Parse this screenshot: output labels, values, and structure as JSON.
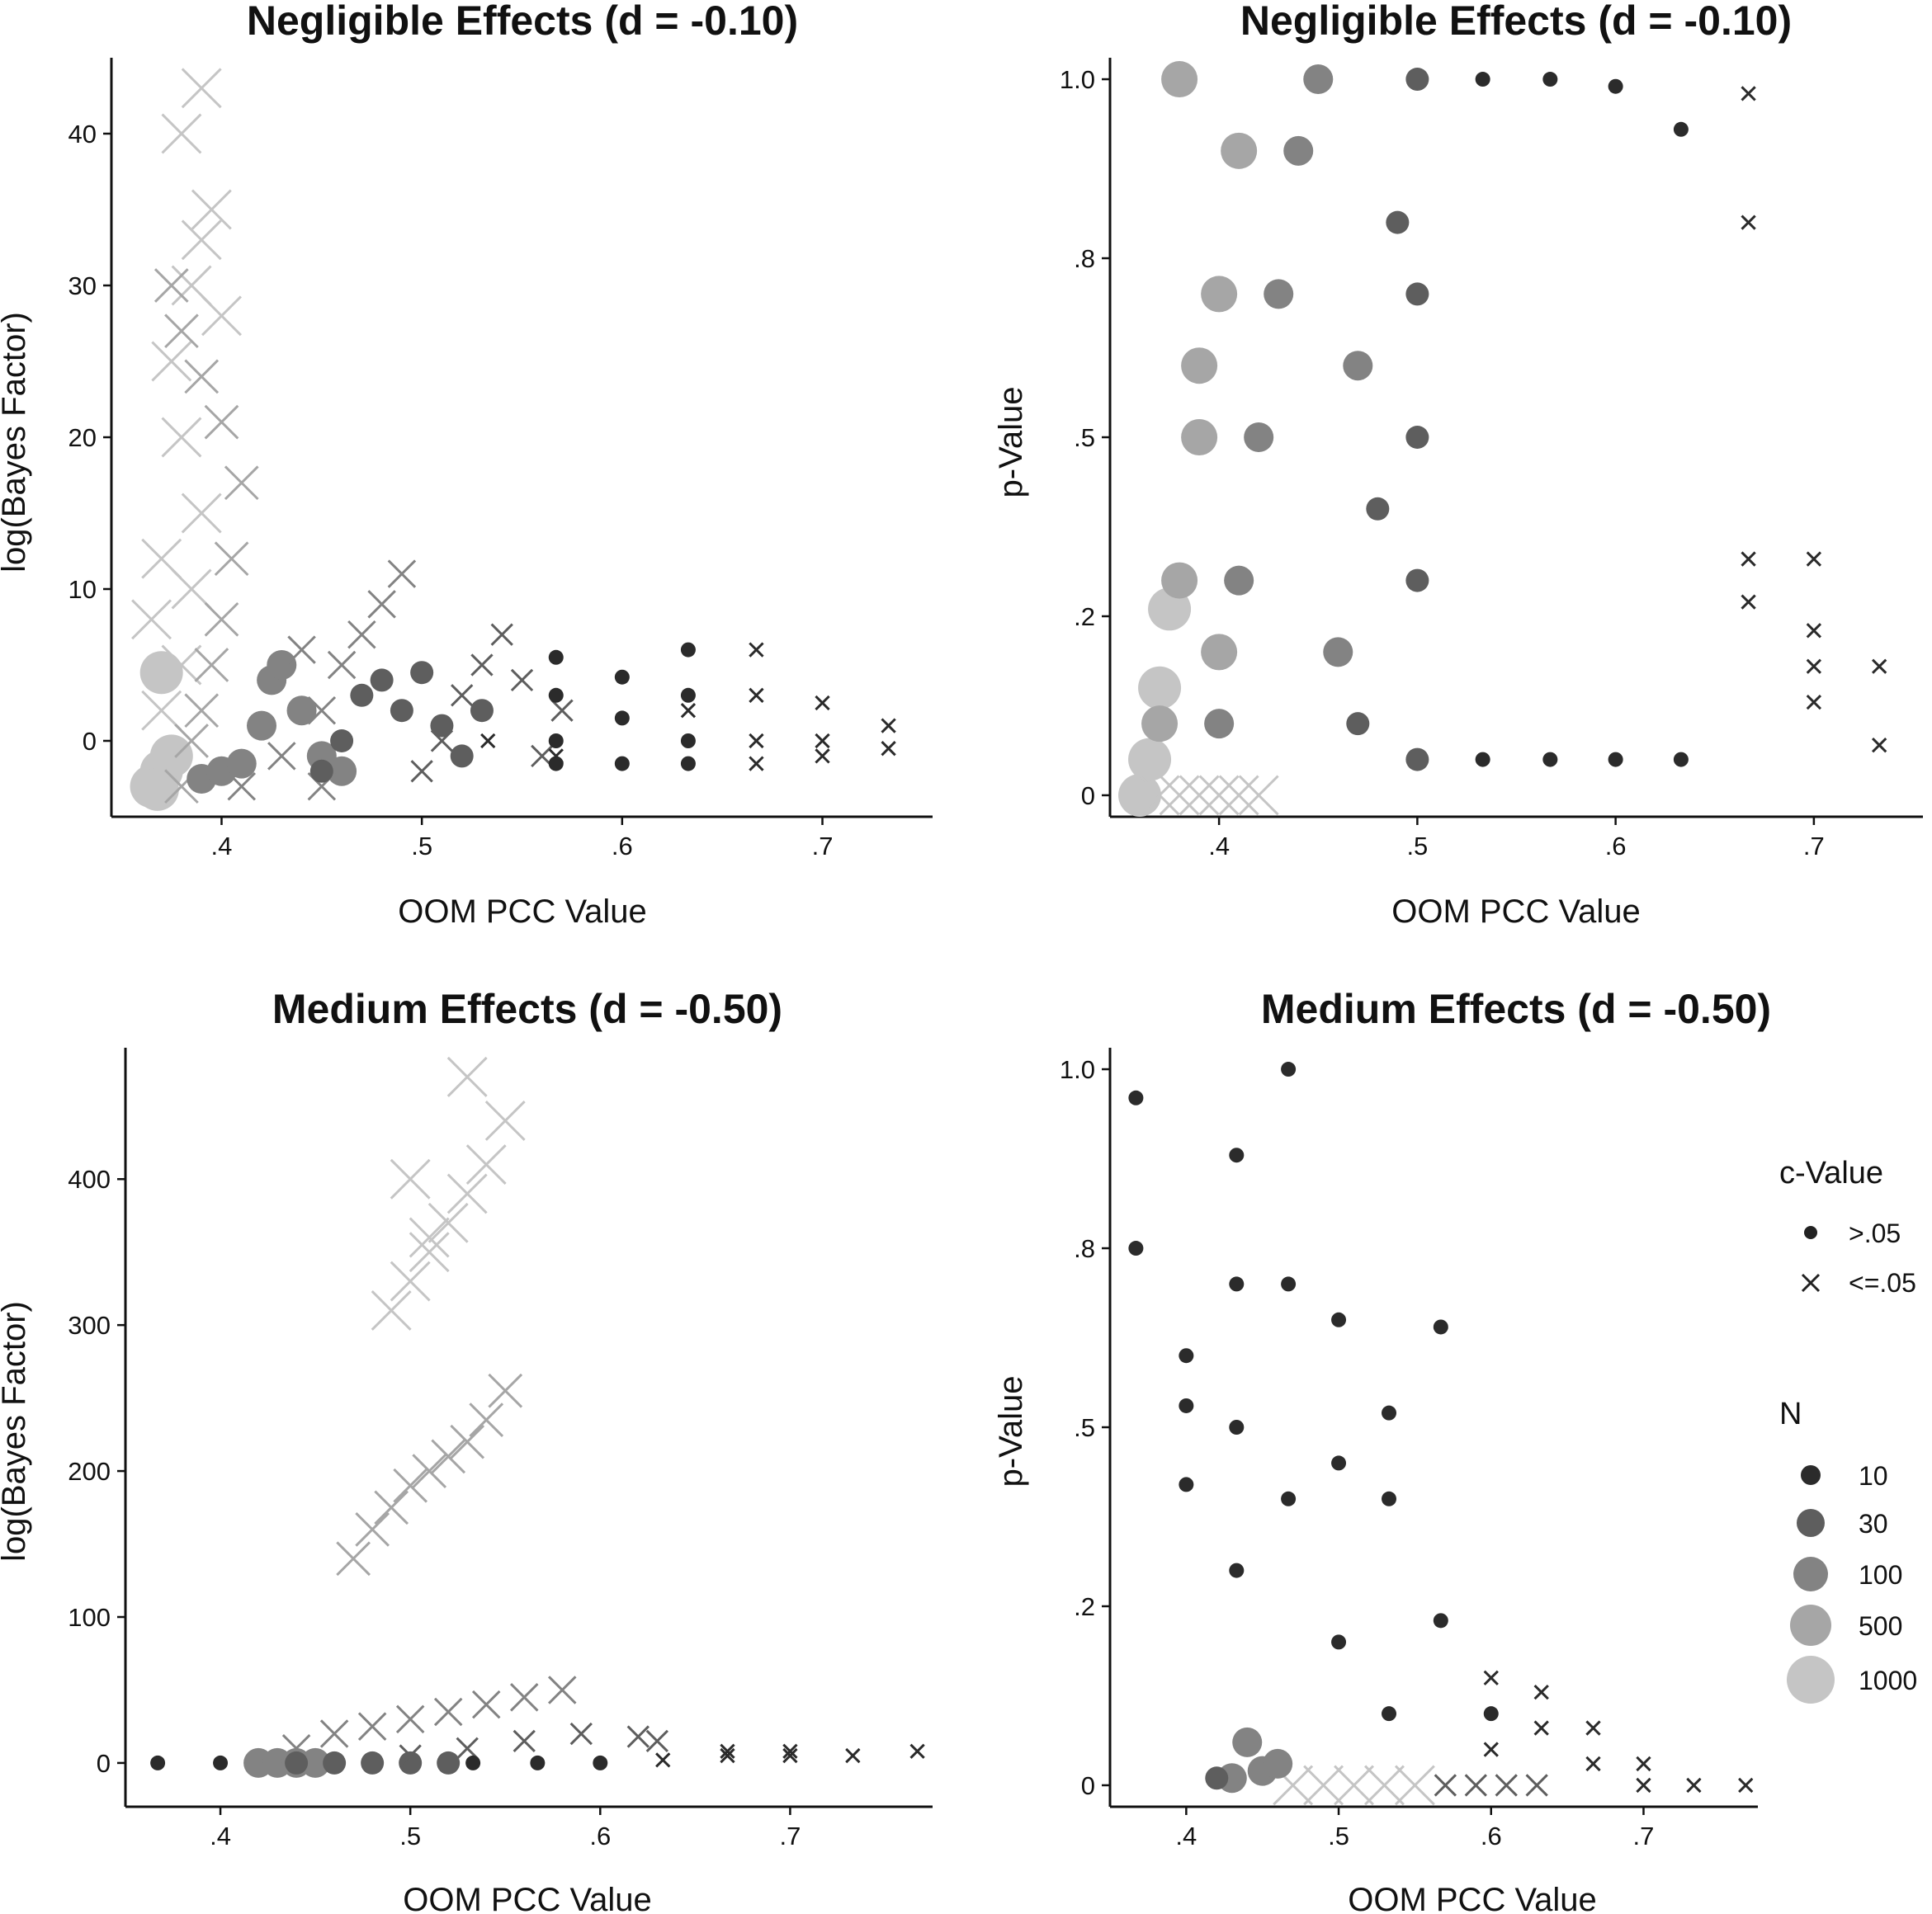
{
  "chart_data": [
    {
      "type": "scatter",
      "title": "Negligible Effects (d = -0.10)",
      "xlabel": "OOM PCC Value",
      "ylabel": "log(Bayes Factor)",
      "xlim": [
        0.345,
        0.755
      ],
      "ylim": [
        -5,
        45
      ],
      "x_ticks": [
        0.4,
        0.5,
        0.6,
        0.7
      ],
      "x_tick_labels": [
        ".4",
        ".5",
        ".6",
        ".7"
      ],
      "y_ticks": [
        0,
        10,
        20,
        30,
        40
      ],
      "y_tick_labels": [
        "0",
        "10",
        "20",
        "30",
        "40"
      ],
      "series": [
        {
          "N": 1000,
          "shape": "circle",
          "x": [
            0.365,
            0.37,
            0.375,
            0.37,
            0.368
          ],
          "y": [
            -3,
            -2,
            -1,
            4.5,
            -3.2
          ]
        },
        {
          "N": 1000,
          "shape": "cross",
          "x": [
            0.37,
            0.38,
            0.385,
            0.39,
            0.38,
            0.375,
            0.385,
            0.39,
            0.395,
            0.38,
            0.37,
            0.365,
            0.39,
            0.4
          ],
          "y": [
            2,
            5,
            10,
            15,
            20,
            25,
            30,
            33,
            35,
            40,
            12,
            8,
            43,
            28
          ]
        },
        {
          "N": 500,
          "shape": "cross",
          "x": [
            0.38,
            0.385,
            0.39,
            0.395,
            0.4,
            0.405,
            0.41,
            0.4,
            0.39,
            0.38,
            0.375
          ],
          "y": [
            -3,
            0,
            2,
            5,
            8,
            12,
            17,
            21,
            24,
            27,
            30
          ]
        },
        {
          "N": 100,
          "shape": "circle",
          "x": [
            0.39,
            0.4,
            0.41,
            0.42,
            0.425,
            0.43,
            0.44,
            0.45,
            0.46
          ],
          "y": [
            -2.5,
            -2,
            -1.5,
            1,
            4,
            5,
            2,
            -1,
            -2
          ]
        },
        {
          "N": 100,
          "shape": "cross",
          "x": [
            0.41,
            0.43,
            0.45,
            0.46,
            0.47,
            0.48,
            0.49,
            0.45,
            0.44
          ],
          "y": [
            -3,
            -1,
            2,
            5,
            7,
            9,
            11,
            -3,
            6
          ]
        },
        {
          "N": 30,
          "shape": "circle",
          "x": [
            0.45,
            0.46,
            0.47,
            0.48,
            0.49,
            0.5,
            0.51,
            0.52,
            0.53
          ],
          "y": [
            -2,
            0,
            3,
            4,
            2,
            4.5,
            1,
            -1,
            2
          ]
        },
        {
          "N": 30,
          "shape": "cross",
          "x": [
            0.5,
            0.51,
            0.52,
            0.53,
            0.54,
            0.55,
            0.56,
            0.57
          ],
          "y": [
            -2,
            0,
            3,
            5,
            7,
            4,
            -1,
            2
          ]
        },
        {
          "N": 10,
          "shape": "circle",
          "x": [
            0.567,
            0.567,
            0.567,
            0.567,
            0.6,
            0.6,
            0.6,
            0.633,
            0.633,
            0.633,
            0.633
          ],
          "y": [
            5.5,
            3,
            0,
            -1.5,
            4.2,
            1.5,
            -1.5,
            6,
            3,
            0,
            -1.5
          ]
        },
        {
          "N": 10,
          "shape": "cross",
          "x": [
            0.533,
            0.567,
            0.633,
            0.667,
            0.667,
            0.667,
            0.667,
            0.7,
            0.7,
            0.7,
            0.733,
            0.733
          ],
          "y": [
            0,
            -1,
            2,
            6,
            3,
            0,
            -1.5,
            2.5,
            0,
            -1,
            1,
            -0.5
          ]
        }
      ]
    },
    {
      "type": "scatter",
      "title": "Negligible Effects (d = -0.10)",
      "xlabel": "OOM PCC Value",
      "ylabel": "p-Value",
      "xlim": [
        0.345,
        0.755
      ],
      "ylim": [
        -0.03,
        1.03
      ],
      "x_ticks": [
        0.4,
        0.5,
        0.6,
        0.7
      ],
      "x_tick_labels": [
        ".4",
        ".5",
        ".6",
        ".7"
      ],
      "y_ticks": [
        0,
        0.25,
        0.5,
        0.75,
        1.0
      ],
      "y_tick_labels": [
        "0",
        ".2",
        ".5",
        ".8",
        "1.0"
      ],
      "series": [
        {
          "N": 1000,
          "shape": "circle",
          "x": [
            0.36,
            0.365,
            0.37,
            0.375
          ],
          "y": [
            0.0,
            0.05,
            0.15,
            0.26
          ]
        },
        {
          "N": 1000,
          "shape": "cross",
          "x": [
            0.37,
            0.38,
            0.39,
            0.4,
            0.41,
            0.42
          ],
          "y": [
            0.0,
            0.0,
            0.0,
            0.0,
            0.0,
            0.0
          ]
        },
        {
          "N": 500,
          "shape": "circle",
          "x": [
            0.37,
            0.38,
            0.39,
            0.4,
            0.41,
            0.38,
            0.39,
            0.4
          ],
          "y": [
            0.1,
            0.3,
            0.5,
            0.7,
            0.9,
            1.0,
            0.6,
            0.2
          ]
        },
        {
          "N": 100,
          "shape": "circle",
          "x": [
            0.4,
            0.41,
            0.42,
            0.43,
            0.44,
            0.45,
            0.46,
            0.47
          ],
          "y": [
            0.1,
            0.3,
            0.5,
            0.7,
            0.9,
            1.0,
            0.2,
            0.6
          ]
        },
        {
          "N": 30,
          "shape": "circle",
          "x": [
            0.47,
            0.48,
            0.49,
            0.5,
            0.5,
            0.5,
            0.5,
            0.5
          ],
          "y": [
            0.1,
            0.4,
            0.8,
            1.0,
            0.7,
            0.5,
            0.3,
            0.05
          ]
        },
        {
          "N": 10,
          "shape": "circle",
          "x": [
            0.533,
            0.533,
            0.567,
            0.567,
            0.6,
            0.6,
            0.633,
            0.633
          ],
          "y": [
            1.0,
            0.05,
            1.0,
            0.05,
            0.99,
            0.05,
            0.93,
            0.05
          ]
        },
        {
          "N": 10,
          "shape": "cross",
          "x": [
            0.667,
            0.667,
            0.667,
            0.667,
            0.7,
            0.7,
            0.7,
            0.7,
            0.733,
            0.733
          ],
          "y": [
            0.98,
            0.8,
            0.33,
            0.27,
            0.33,
            0.23,
            0.18,
            0.13,
            0.18,
            0.07
          ]
        }
      ]
    },
    {
      "type": "scatter",
      "title": "Medium Effects (d = -0.50)",
      "xlabel": "OOM PCC Value",
      "ylabel": "log(Bayes Factor)",
      "xlim": [
        0.35,
        0.775
      ],
      "ylim": [
        -30,
        490
      ],
      "x_ticks": [
        0.4,
        0.5,
        0.6,
        0.7
      ],
      "x_tick_labels": [
        ".4",
        ".5",
        ".6",
        ".7"
      ],
      "y_ticks": [
        0,
        100,
        200,
        300,
        400
      ],
      "y_tick_labels": [
        "0",
        "100",
        "200",
        "300",
        "400"
      ],
      "series": [
        {
          "N": 1000,
          "shape": "cross",
          "x": [
            0.49,
            0.5,
            0.51,
            0.52,
            0.53,
            0.54,
            0.55,
            0.5,
            0.51,
            0.53
          ],
          "y": [
            310,
            330,
            350,
            370,
            390,
            410,
            440,
            400,
            360,
            470
          ]
        },
        {
          "N": 500,
          "shape": "cross",
          "x": [
            0.47,
            0.48,
            0.49,
            0.5,
            0.51,
            0.52,
            0.53,
            0.54,
            0.55
          ],
          "y": [
            140,
            160,
            175,
            190,
            200,
            210,
            220,
            235,
            255
          ]
        },
        {
          "N": 100,
          "shape": "cross",
          "x": [
            0.44,
            0.46,
            0.48,
            0.5,
            0.52,
            0.54,
            0.56,
            0.58
          ],
          "y": [
            10,
            20,
            25,
            30,
            35,
            40,
            45,
            50
          ]
        },
        {
          "N": 100,
          "shape": "circle",
          "x": [
            0.42,
            0.43,
            0.44,
            0.45
          ],
          "y": [
            0,
            0,
            0,
            0
          ]
        },
        {
          "N": 30,
          "shape": "circle",
          "x": [
            0.44,
            0.46,
            0.48,
            0.5,
            0.52
          ],
          "y": [
            0,
            0,
            0,
            0,
            0
          ]
        },
        {
          "N": 30,
          "shape": "cross",
          "x": [
            0.5,
            0.53,
            0.56,
            0.59,
            0.62,
            0.63
          ],
          "y": [
            5,
            10,
            15,
            20,
            18,
            15
          ]
        },
        {
          "N": 10,
          "shape": "circle",
          "x": [
            0.367,
            0.4,
            0.533,
            0.567,
            0.6
          ],
          "y": [
            0,
            0,
            0,
            0,
            0
          ]
        },
        {
          "N": 10,
          "shape": "cross",
          "x": [
            0.633,
            0.667,
            0.667,
            0.7,
            0.7,
            0.733,
            0.767
          ],
          "y": [
            2,
            5,
            8,
            5,
            8,
            5,
            8
          ]
        }
      ]
    },
    {
      "type": "scatter",
      "title": "Medium Effects (d = -0.50)",
      "xlabel": "OOM PCC Value",
      "ylabel": "p-Value",
      "xlim": [
        0.35,
        0.775
      ],
      "ylim": [
        -0.03,
        1.03
      ],
      "x_ticks": [
        0.4,
        0.5,
        0.6,
        0.7
      ],
      "x_tick_labels": [
        ".4",
        ".5",
        ".6",
        ".7"
      ],
      "y_ticks": [
        0,
        0.25,
        0.5,
        0.75,
        1.0
      ],
      "y_tick_labels": [
        "0",
        ".2",
        ".5",
        ".8",
        "1.0"
      ],
      "series": [
        {
          "N": 1000,
          "shape": "cross",
          "x": [
            0.47,
            0.49,
            0.51,
            0.53,
            0.55
          ],
          "y": [
            0,
            0,
            0,
            0,
            0
          ]
        },
        {
          "N": 100,
          "shape": "circle",
          "x": [
            0.43,
            0.44,
            0.45,
            0.46
          ],
          "y": [
            0.01,
            0.06,
            0.02,
            0.03
          ]
        },
        {
          "N": 30,
          "shape": "circle",
          "x": [
            0.42
          ],
          "y": [
            0.01
          ]
        },
        {
          "N": 30,
          "shape": "cross",
          "x": [
            0.57,
            0.59,
            0.61,
            0.63
          ],
          "y": [
            0,
            0,
            0,
            0
          ]
        },
        {
          "N": 10,
          "shape": "circle",
          "x": [
            0.367,
            0.367,
            0.4,
            0.4,
            0.4,
            0.433,
            0.433,
            0.433,
            0.433,
            0.467,
            0.467,
            0.467,
            0.5,
            0.5,
            0.5,
            0.533,
            0.533,
            0.533,
            0.567,
            0.567,
            0.6
          ],
          "y": [
            0.96,
            0.75,
            0.6,
            0.53,
            0.42,
            0.88,
            0.7,
            0.5,
            0.3,
            1.0,
            0.7,
            0.4,
            0.65,
            0.45,
            0.2,
            0.52,
            0.4,
            0.1,
            0.64,
            0.23,
            0.1
          ]
        },
        {
          "N": 10,
          "shape": "cross",
          "x": [
            0.6,
            0.6,
            0.633,
            0.633,
            0.667,
            0.667,
            0.7,
            0.7,
            0.733,
            0.767
          ],
          "y": [
            0.15,
            0.05,
            0.13,
            0.08,
            0.08,
            0.03,
            0.03,
            0.0,
            0.0,
            0.0
          ]
        }
      ]
    }
  ],
  "legend": {
    "c_title": "c-Value",
    "c_items": [
      {
        "label": ">.05",
        "shape": "circle"
      },
      {
        "label": "<=.05",
        "shape": "cross"
      }
    ],
    "n_title": "N",
    "n_items": [
      {
        "label": "10",
        "color": "#2b2b2b"
      },
      {
        "label": "30",
        "color": "#5e5e5e"
      },
      {
        "label": "100",
        "color": "#838383"
      },
      {
        "label": "500",
        "color": "#a6a6a6"
      },
      {
        "label": "1000",
        "color": "#c5c5c5"
      }
    ]
  },
  "colors": {
    "axis": "#111111",
    "background": "#ffffff"
  }
}
